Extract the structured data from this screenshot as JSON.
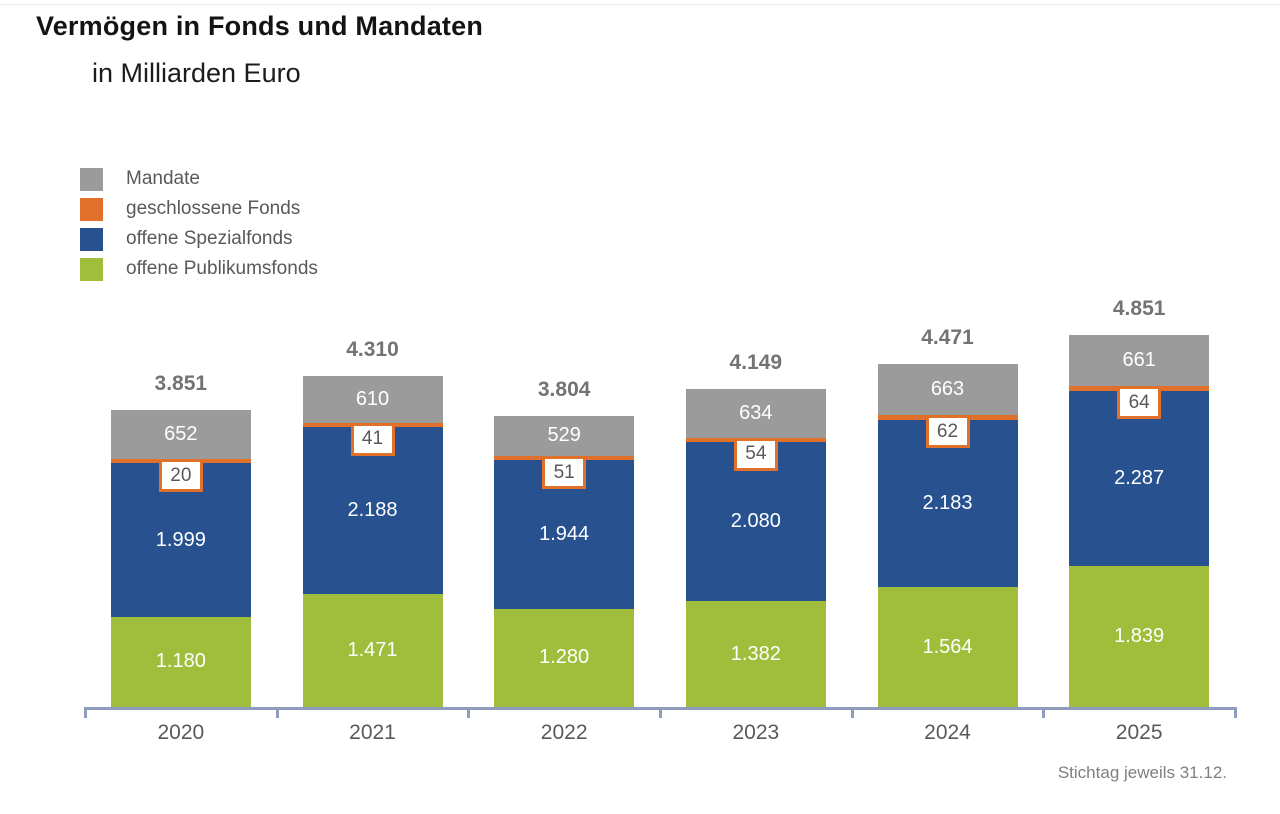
{
  "title": "Vermögen in Fonds und Mandaten",
  "subtitle": "in Milliarden Euro",
  "footnote": "Stichtag jeweils 31.12.",
  "legend": [
    {
      "key": "mandate",
      "label": "Mandate",
      "color": "#9c9b9b"
    },
    {
      "key": "geschlossene-fonds",
      "label": "geschlossene Fonds",
      "color": "#e0702a"
    },
    {
      "key": "offene-spezialfonds",
      "label": "offene Spezialfonds",
      "color": "#27518f"
    },
    {
      "key": "offene-publikumsfonds",
      "label": "offene Publikumsfonds",
      "color": "#a0be3b"
    }
  ],
  "chart_data": {
    "type": "bar",
    "stacked": true,
    "title": "Vermögen in Fonds und Mandaten",
    "subtitle": "in Milliarden Euro",
    "unit": "Milliarden Euro",
    "categories": [
      "2020",
      "2021",
      "2022",
      "2023",
      "2024",
      "2025"
    ],
    "series": [
      {
        "name": "offene Publikumsfonds",
        "color": "#a0be3b",
        "label_style": "inline",
        "values": [
          1180,
          1471,
          1280,
          1382,
          1564,
          1839
        ],
        "labels": [
          "1.180",
          "1.471",
          "1.280",
          "1.382",
          "1.564",
          "1.839"
        ]
      },
      {
        "name": "offene Spezialfonds",
        "color": "#27518f",
        "label_style": "inline",
        "values": [
          1999,
          2188,
          1944,
          2080,
          2183,
          2287
        ],
        "labels": [
          "1.999",
          "2.188",
          "1.944",
          "2.080",
          "2.183",
          "2.287"
        ]
      },
      {
        "name": "geschlossene Fonds",
        "color": "#e0702a",
        "label_style": "boxed",
        "values": [
          20,
          41,
          51,
          54,
          62,
          64
        ],
        "labels": [
          "20",
          "41",
          "51",
          "54",
          "62",
          "64"
        ]
      },
      {
        "name": "Mandate",
        "color": "#9c9b9b",
        "label_style": "inline",
        "values": [
          652,
          610,
          529,
          634,
          663,
          661
        ],
        "labels": [
          "652",
          "610",
          "529",
          "634",
          "663",
          "661"
        ]
      }
    ],
    "totals": [
      3851,
      4310,
      3804,
      4149,
      4471,
      4851
    ],
    "total_labels": [
      "3.851",
      "4.310",
      "3.804",
      "4.149",
      "4.471",
      "4.851"
    ],
    "footnote": "Stichtag jeweils 31.12.",
    "legend_position": "top-left",
    "grid": false,
    "ylim": [
      0,
      5200
    ]
  },
  "colors": {
    "mandate": "#9c9b9b",
    "geschlossene_fonds": "#e0702a",
    "offene_spezialfonds": "#27518f",
    "offene_publikumsfonds": "#a0be3b",
    "axis": "#8e9dbc",
    "total_label": "#737373",
    "year_label": "#595959",
    "segment_label": "#ffffff",
    "box_text": "#595959"
  }
}
